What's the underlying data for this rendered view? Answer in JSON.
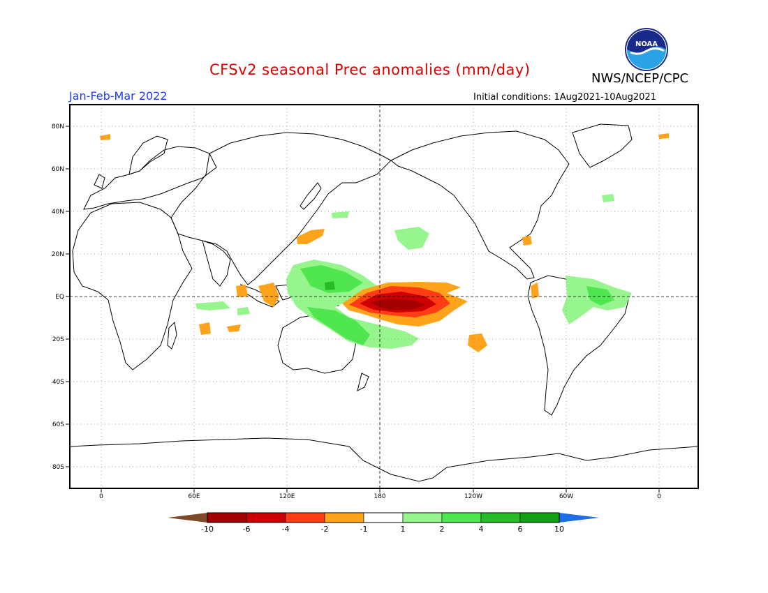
{
  "header": {
    "title": "CFSv2 seasonal Prec anomalies (mm/day)",
    "season": "Jan-Feb-Mar 2022",
    "agency": "NWS/NCEP/CPC",
    "initial_conditions": "Initial conditions: 1Aug2021-10Aug2021",
    "logo_text": "NOAA"
  },
  "map": {
    "lat_ticks": [
      "80N",
      "60N",
      "40N",
      "20N",
      "EQ",
      "20S",
      "40S",
      "60S",
      "80S"
    ],
    "lon_ticks": [
      "0",
      "60E",
      "120E",
      "180",
      "120W",
      "60W",
      "0"
    ]
  },
  "colorbar": {
    "labels": [
      "-10",
      "-6",
      "-4",
      "-2",
      "-1",
      "1",
      "2",
      "4",
      "6",
      "10"
    ],
    "colors": [
      "#7f4a2a",
      "#a50000",
      "#cc0000",
      "#ff3c14",
      "#ffa31a",
      "#ffffff",
      "#96f58c",
      "#50e650",
      "#28bd28",
      "#14a014",
      "#1e6ee6"
    ]
  },
  "colors": {
    "title": "#e00000",
    "season": "#1e3cff",
    "strong_dry": "#a50000",
    "dry": "#cc0000",
    "moderate_dry": "#ff3c14",
    "light_dry": "#ffa31a",
    "light_wet": "#96f58c",
    "wet": "#50e650",
    "strong_wet": "#28bd28"
  }
}
